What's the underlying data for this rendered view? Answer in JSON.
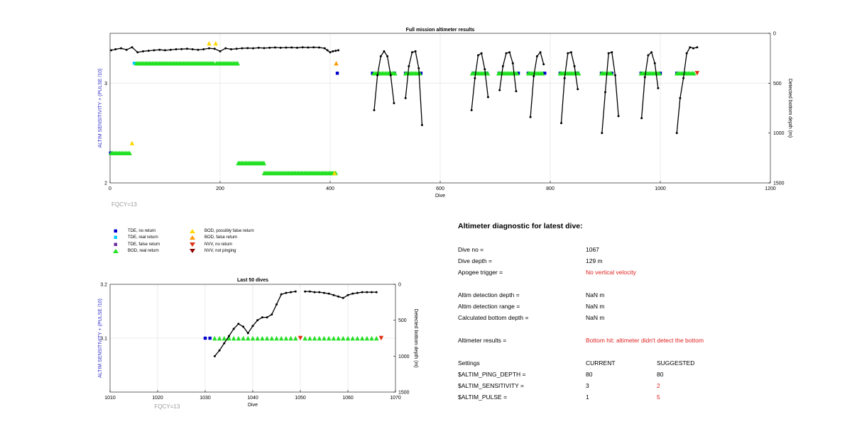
{
  "colors": {
    "tde_no_return": "#0000cc",
    "tde_real_return": "#00ccff",
    "tde_false_return": "#7030a0",
    "bod_real_return": "#22e022",
    "bod_possibly_false": "#ffd700",
    "bod_false_return": "#ff9900",
    "nvv_no_return": "#e03010",
    "nvv_not_pinging": "#8b0000",
    "ylabel_left": "#3030cc",
    "alert": "#e02020",
    "fqcy": "#999999"
  },
  "chart_data": [
    {
      "type": "scatter",
      "title": "Full mission altimeter results",
      "xlabel": "Dive",
      "ylabel": "ALTIM SENSITIVITY + (PULSE /10)",
      "ylabel_right": "Detected bottom depth (m)",
      "xlim": [
        0,
        1200
      ],
      "ylim": [
        2,
        3.5
      ],
      "ylim_right": [
        1500,
        0
      ],
      "xticks": [
        "0",
        "200",
        "400",
        "600",
        "800",
        "1000",
        "1200"
      ],
      "yticks": [
        "2",
        "3"
      ],
      "yticks_right": [
        "0",
        "500",
        "1000",
        "1500"
      ],
      "grid": true,
      "annotation": "FQCY=13",
      "depth_profile_note": "black dots: detected bottom depth per dive",
      "depth_early": [
        [
          2,
          170
        ],
        [
          10,
          160
        ],
        [
          20,
          150
        ],
        [
          30,
          165
        ],
        [
          40,
          140
        ],
        [
          50,
          190
        ],
        [
          60,
          180
        ],
        [
          70,
          175
        ],
        [
          80,
          170
        ],
        [
          90,
          165
        ],
        [
          100,
          170
        ],
        [
          110,
          165
        ],
        [
          120,
          160
        ],
        [
          130,
          158
        ],
        [
          140,
          155
        ],
        [
          150,
          160
        ],
        [
          160,
          165
        ],
        [
          170,
          160
        ],
        [
          180,
          150
        ],
        [
          190,
          155
        ],
        [
          200,
          180
        ],
        [
          210,
          150
        ],
        [
          220,
          160
        ],
        [
          230,
          155
        ],
        [
          240,
          150
        ],
        [
          250,
          148
        ],
        [
          260,
          150
        ],
        [
          270,
          145
        ],
        [
          280,
          148
        ],
        [
          290,
          145
        ],
        [
          300,
          142
        ],
        [
          310,
          145
        ],
        [
          320,
          143
        ],
        [
          330,
          142
        ],
        [
          340,
          145
        ],
        [
          350,
          140
        ],
        [
          360,
          142
        ],
        [
          370,
          140
        ],
        [
          380,
          142
        ],
        [
          390,
          150
        ],
        [
          395,
          170
        ],
        [
          400,
          190
        ],
        [
          405,
          180
        ],
        [
          410,
          175
        ],
        [
          415,
          170
        ]
      ],
      "depth_bumps": [
        {
          "x": [
            480,
            486,
            492,
            498,
            504,
            510,
            516
          ],
          "y": [
            770,
            420,
            230,
            180,
            230,
            420,
            700
          ]
        },
        {
          "x": [
            537,
            543,
            549,
            555,
            561,
            567
          ],
          "y": [
            650,
            330,
            190,
            180,
            350,
            920
          ]
        },
        {
          "x": [
            657,
            663,
            669,
            675,
            681,
            687
          ],
          "y": [
            770,
            450,
            220,
            200,
            360,
            640
          ]
        },
        {
          "x": [
            708,
            714,
            720,
            726,
            732,
            738
          ],
          "y": [
            570,
            330,
            200,
            190,
            300,
            580
          ]
        },
        {
          "x": [
            764,
            770,
            776,
            782,
            788
          ],
          "y": [
            840,
            430,
            230,
            190,
            310
          ]
        },
        {
          "x": [
            820,
            826,
            832,
            838,
            844,
            850
          ],
          "y": [
            900,
            450,
            200,
            190,
            330,
            560
          ]
        },
        {
          "x": [
            894,
            900,
            906,
            912,
            918,
            924
          ],
          "y": [
            1000,
            590,
            200,
            190,
            420,
            830
          ]
        },
        {
          "x": [
            966,
            972,
            978,
            984,
            990,
            996
          ],
          "y": [
            850,
            440,
            220,
            190,
            300,
            550
          ]
        },
        {
          "x": [
            1030,
            1036,
            1042,
            1048,
            1054,
            1060,
            1067
          ],
          "y": [
            1000,
            650,
            450,
            200,
            140,
            150,
            140
          ]
        }
      ],
      "series": [
        {
          "name": "TDE, no return",
          "marker": "square",
          "color": "#0000cc",
          "points": [
            [
              1,
              2.3
            ],
            [
              413,
              3.1
            ],
            [
              477,
              3.1
            ],
            [
              517,
              3.1
            ],
            [
              537,
              3.1
            ],
            [
              565,
              3.1
            ],
            [
              660,
              3.1
            ],
            [
              685,
              3.1
            ],
            [
              707,
              3.1
            ],
            [
              742,
              3.1
            ],
            [
              760,
              3.1
            ],
            [
              790,
              3.1
            ],
            [
              818,
              3.1
            ],
            [
              850,
              3.1
            ],
            [
              893,
              3.1
            ],
            [
              912,
              3.1
            ],
            [
              965,
              3.1
            ],
            [
              1000,
              3.1
            ],
            [
              1030,
              3.1
            ]
          ]
        },
        {
          "name": "TDE, real return",
          "marker": "square",
          "color": "#00ccff",
          "points": [
            [
              44,
              3.2
            ],
            [
              1045,
              3.1
            ]
          ]
        },
        {
          "name": "BOD, real return",
          "marker": "triangle-up",
          "color": "#22e022",
          "ranges": [
            {
              "from": 2,
              "to": 36,
              "y": 2.3
            },
            {
              "from": 48,
              "to": 190,
              "y": 3.2
            },
            {
              "from": 193,
              "to": 233,
              "y": 3.2
            },
            {
              "from": 233,
              "to": 282,
              "y": 2.2
            },
            {
              "from": 280,
              "to": 412,
              "y": 2.1
            },
            {
              "from": 479,
              "to": 520,
              "y": 3.1
            },
            {
              "from": 537,
              "to": 565,
              "y": 3.1
            },
            {
              "from": 658,
              "to": 687,
              "y": 3.1
            },
            {
              "from": 706,
              "to": 740,
              "y": 3.1
            },
            {
              "from": 760,
              "to": 788,
              "y": 3.1
            },
            {
              "from": 818,
              "to": 852,
              "y": 3.1
            },
            {
              "from": 893,
              "to": 912,
              "y": 3.1
            },
            {
              "from": 965,
              "to": 1000,
              "y": 3.1
            },
            {
              "from": 1030,
              "to": 1062,
              "y": 3.1
            }
          ]
        },
        {
          "name": "BOD, possibly false return",
          "marker": "triangle-up",
          "color": "#ffd700",
          "points": [
            [
              40,
              2.4
            ],
            [
              180,
              3.4
            ],
            [
              192,
              3.4
            ],
            [
              408,
              2.1
            ]
          ]
        },
        {
          "name": "BOD, false return",
          "marker": "triangle-up",
          "color": "#ff9900",
          "points": [
            [
              411,
              3.2
            ]
          ]
        },
        {
          "name": "NVV, no return",
          "marker": "triangle-down",
          "color": "#e03010",
          "points": [
            [
              1067,
              3.1
            ]
          ]
        }
      ]
    },
    {
      "type": "scatter",
      "title": "Last 50 dives",
      "xlabel": "Dive",
      "ylabel": "ALTIM SENSITIVITY + (PULSE /10)",
      "ylabel_right": "Detected bottom depth (m)",
      "xlim": [
        1010,
        1070
      ],
      "ylim": [
        3.0,
        3.2
      ],
      "ylim_right": [
        1500,
        0
      ],
      "xticks": [
        "1010",
        "1020",
        "1030",
        "1040",
        "1050",
        "1060",
        "1070"
      ],
      "yticks": [
        "3.1",
        "3.2"
      ],
      "yticks_right": [
        "0",
        "500",
        "1000",
        "1500"
      ],
      "grid": true,
      "annotation": "FQCY=13",
      "depth": {
        "x": [
          1032,
          1033,
          1034,
          1035,
          1036,
          1037,
          1038,
          1039,
          1040,
          1041,
          1042,
          1043,
          1044,
          1045,
          1046,
          1047,
          1048,
          1049,
          1051,
          1052,
          1053,
          1054,
          1055,
          1056,
          1057,
          1058,
          1059,
          1060,
          1061,
          1062,
          1063,
          1064,
          1065,
          1066
        ],
        "y": [
          1000,
          920,
          820,
          720,
          620,
          550,
          590,
          680,
          580,
          500,
          460,
          460,
          420,
          280,
          140,
          120,
          110,
          100,
          100,
          100,
          110,
          110,
          120,
          130,
          150,
          170,
          190,
          150,
          130,
          120,
          110,
          110,
          110,
          110
        ]
      },
      "markers": {
        "tde_no_return": [
          1030,
          1031
        ],
        "bod_real_return": [
          1032,
          1033,
          1034,
          1035,
          1036,
          1037,
          1038,
          1039,
          1040,
          1041,
          1042,
          1043,
          1044,
          1045,
          1046,
          1047,
          1048,
          1049,
          1051,
          1052,
          1053,
          1054,
          1055,
          1056,
          1057,
          1058,
          1059,
          1060,
          1061,
          1062,
          1063,
          1064,
          1065,
          1066
        ],
        "nvv_no_return": [
          1050,
          1067
        ],
        "y": 3.1
      }
    }
  ],
  "legend": {
    "items": [
      {
        "label": "TDE, no return",
        "symbol": "square",
        "color": "#0000cc"
      },
      {
        "label": "TDE, real return",
        "symbol": "square",
        "color": "#00ccff"
      },
      {
        "label": "TDE, false return",
        "symbol": "square",
        "color": "#7030a0"
      },
      {
        "label": "BOD, real return",
        "symbol": "triangle-up",
        "color": "#22e022"
      },
      {
        "label": "BOD, possibly false return",
        "symbol": "triangle-up",
        "color": "#ffd700"
      },
      {
        "label": "BOD, false return",
        "symbol": "triangle-up",
        "color": "#ff9900"
      },
      {
        "label": "NVV, no return",
        "symbol": "triangle-down",
        "color": "#e03010"
      },
      {
        "label": "NVV, not pinging",
        "symbol": "triangle-down",
        "color": "#8b0000"
      }
    ]
  },
  "diagnostic": {
    "title": "Altimeter diagnostic for latest dive:",
    "rows": [
      {
        "label": "Dive no =",
        "value": "1067",
        "alert": false
      },
      {
        "label": "Dive depth =",
        "value": "129 m",
        "alert": false
      },
      {
        "label": "Apogee trigger =",
        "value": "No vertical velocity",
        "alert": true
      },
      {
        "label": "Altim detection depth =",
        "value": "NaN m",
        "alert": false
      },
      {
        "label": "Altim detection range =",
        "value": "NaN m",
        "alert": false
      },
      {
        "label": "Calculated bottom depth =",
        "value": "NaN m",
        "alert": false
      },
      {
        "label": "Altimeter results =",
        "value": "Bottom hit: altimeter didn't detect the bottom",
        "alert": true
      }
    ],
    "settings": {
      "header": {
        "label": "Settings",
        "current": "CURRENT",
        "suggested": "SUGGESTED"
      },
      "rows": [
        {
          "label": "$ALTIM_PING_DEPTH =",
          "current": "80",
          "suggested": "80",
          "changed": false
        },
        {
          "label": "$ALTIM_SENSITIVITY =",
          "current": "3",
          "suggested": "2",
          "changed": true
        },
        {
          "label": "$ALTIM_PULSE =",
          "current": "1",
          "suggested": "5",
          "changed": true
        }
      ]
    }
  }
}
